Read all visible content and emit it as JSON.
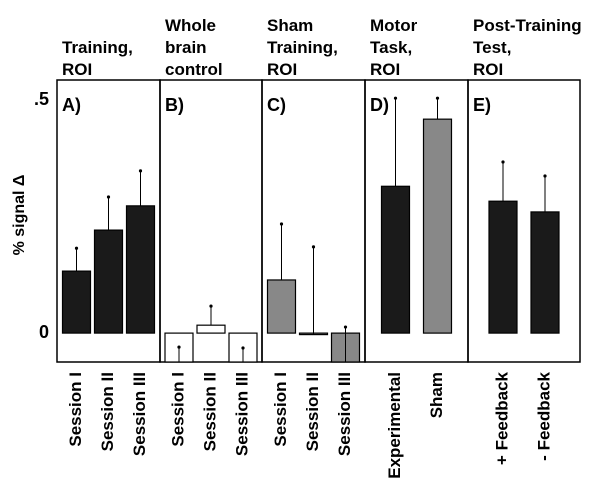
{
  "chart_data": [
    {
      "type": "bar",
      "title": [
        "Training,",
        "ROI"
      ],
      "panel_label": "A)",
      "ylabel": "% signal Δ",
      "ylim": [
        -0.062,
        0.543
      ],
      "yticks": [
        0,
        {
          "value": 0.5,
          "label": ".5"
        }
      ],
      "categories": [
        "Session I",
        "Session II",
        "Session III"
      ],
      "values": [
        0.133,
        0.221,
        0.273
      ],
      "errors": [
        0.049,
        0.071,
        0.075
      ],
      "colors": [
        "#1a1a1a",
        "#1a1a1a",
        "#1a1a1a"
      ]
    },
    {
      "type": "bar",
      "title": [
        "Whole",
        "brain",
        "control"
      ],
      "panel_label": "B)",
      "ylim": [
        -0.062,
        0.543
      ],
      "categories": [
        "Session I",
        "Session II",
        "Session III"
      ],
      "values": [
        -0.062,
        0.017,
        -0.062
      ],
      "errors": [
        0.032,
        0.041,
        0.03
      ],
      "colors": [
        "#ffffff",
        "#ffffff",
        "#ffffff"
      ]
    },
    {
      "type": "bar",
      "title": [
        "Sham",
        "Training,",
        "ROI"
      ],
      "panel_label": "C)",
      "ylim": [
        -0.062,
        0.543
      ],
      "categories": [
        "Session I",
        "Session II",
        "Session III"
      ],
      "values": [
        0.114,
        -0.003,
        -0.062
      ],
      "errors": [
        0.12,
        0.188,
        0.075
      ],
      "colors": [
        "#888888",
        "#888888",
        "#888888"
      ]
    },
    {
      "type": "bar",
      "title": [
        "Motor",
        "Task,",
        "ROI"
      ],
      "panel_label": "D)",
      "ylim": [
        -0.062,
        0.543
      ],
      "categories": [
        "Experimental",
        "Sham"
      ],
      "values": [
        0.315,
        0.459
      ],
      "errors": [
        0.189,
        0.045
      ],
      "colors": [
        "#1a1a1a",
        "#888888"
      ]
    },
    {
      "type": "bar",
      "title": [
        "Post-Training",
        "Test,",
        "ROI"
      ],
      "panel_label": "E)",
      "ylim": [
        -0.062,
        0.543
      ],
      "categories": [
        "+ Feedback",
        "- Feedback"
      ],
      "values": [
        0.283,
        0.26
      ],
      "errors": [
        0.084,
        0.077
      ],
      "colors": [
        "#1a1a1a",
        "#1a1a1a"
      ]
    }
  ]
}
